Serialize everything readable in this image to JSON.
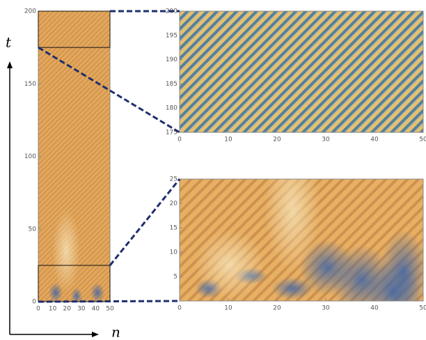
{
  "chart_data": [
    {
      "type": "density",
      "xlabel": "n",
      "ylabel": "t",
      "xlim": [
        0,
        50
      ],
      "xticks": [
        0,
        10,
        20,
        30,
        40,
        50
      ],
      "ylim": [
        0,
        200
      ],
      "yticks": [
        0,
        50,
        100,
        150,
        200
      ]
    },
    {
      "type": "density",
      "xlim": [
        0,
        50
      ],
      "xticks": [
        0,
        10,
        20,
        30,
        40,
        50
      ],
      "ylim": [
        175,
        200
      ],
      "yticks": [
        175,
        180,
        185,
        190,
        195,
        200
      ]
    },
    {
      "type": "density",
      "xlim": [
        0,
        50
      ],
      "xticks": [
        0,
        10,
        20,
        30,
        40,
        50
      ],
      "ylim": [
        0,
        25
      ],
      "yticks": [
        5,
        10,
        15,
        20,
        25
      ]
    }
  ]
}
